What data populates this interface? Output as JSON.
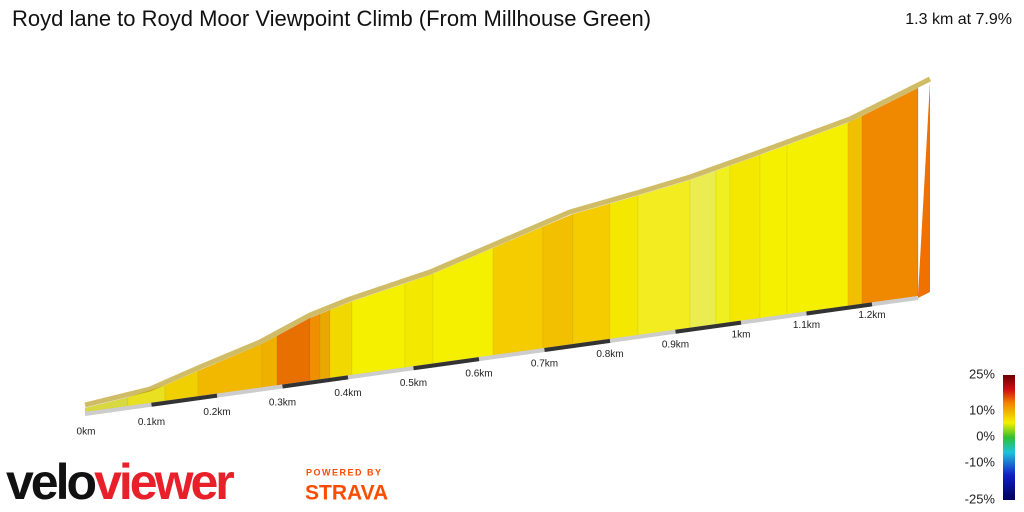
{
  "header": {
    "title": "Royd lane to Royd Moor Viewpoint Climb (From Millhouse Green)",
    "summary": "1.3 km at 7.9%"
  },
  "profile": {
    "segment_colors": [
      "#d8d840",
      "#e8e020",
      "#f0d000",
      "#f2b800",
      "#f0b000",
      "#e87000",
      "#f09000",
      "#e8a800",
      "#f0d800",
      "#f4f000",
      "#f2e800",
      "#f4f000",
      "#f4cc00",
      "#f2c000",
      "#f4cc00",
      "#f4e800",
      "#f2ec20",
      "#eaec50",
      "#f0f020",
      "#f4e800",
      "#f4f000",
      "#f4f000",
      "#f2c000",
      "#f08800",
      "#f08000"
    ],
    "distance_labels": [
      "0km",
      "0.1km",
      "0.2km",
      "0.3km",
      "0.4km",
      "0.5km",
      "0.6km",
      "0.7km",
      "0.8km",
      "0.9km",
      "1km",
      "1.1km",
      "1.2km"
    ]
  },
  "legend": {
    "labels": [
      "25%",
      "10%",
      "0%",
      "-10%",
      "-25%"
    ]
  },
  "logo": {
    "velo": "velo",
    "viewer": "viewer",
    "powered": "POWERED BY",
    "brand": "STRAVA"
  }
}
